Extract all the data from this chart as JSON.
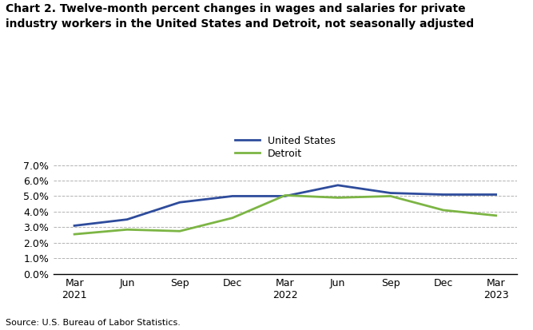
{
  "title": "Chart 2. Twelve-month percent changes in wages and salaries for private\nindustry workers in the United States and Detroit, not seasonally adjusted",
  "source": "Source: U.S. Bureau of Labor Statistics.",
  "x_labels": [
    "Mar\n2021",
    "Jun",
    "Sep",
    "Dec",
    "Mar\n2022",
    "Jun",
    "Sep",
    "Dec",
    "Mar\n2023"
  ],
  "us_values": [
    3.1,
    3.5,
    4.6,
    5.0,
    5.0,
    5.7,
    5.2,
    5.1,
    5.1
  ],
  "detroit_values": [
    2.55,
    2.85,
    2.75,
    3.6,
    5.05,
    4.9,
    5.0,
    4.1,
    3.75
  ],
  "us_color": "#2E4C9C",
  "detroit_color": "#7CB544",
  "ylim": [
    0.0,
    7.0
  ],
  "yticks": [
    0.0,
    1.0,
    2.0,
    3.0,
    4.0,
    5.0,
    6.0,
    7.0
  ],
  "legend_labels": [
    "United States",
    "Detroit"
  ],
  "background_color": "#ffffff",
  "grid_color": "#aaaaaa",
  "line_width": 2.0
}
